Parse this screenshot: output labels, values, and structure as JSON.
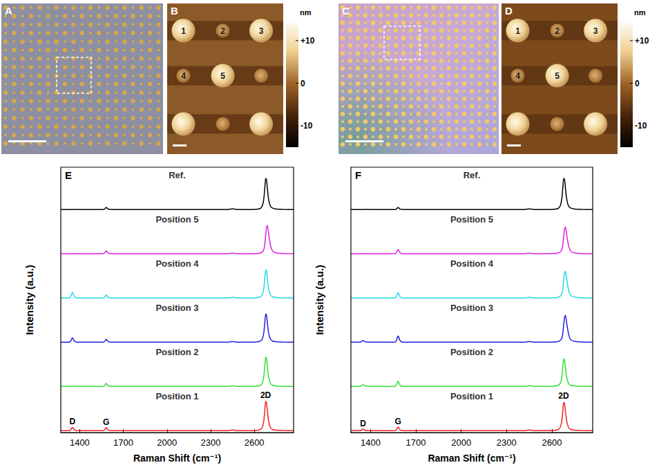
{
  "images": [
    {
      "letter": "A",
      "kind": "optical"
    },
    {
      "letter": "B",
      "kind": "afm",
      "dot_labels": [
        "1",
        "2",
        "3",
        "4",
        "5"
      ],
      "colorbar": {
        "unit": "nm",
        "range": [
          -15,
          15
        ],
        "ticks": [
          {
            "value": 10,
            "label": "+10"
          },
          0,
          -10
        ]
      }
    },
    {
      "letter": "C",
      "kind": "optical"
    },
    {
      "letter": "D",
      "kind": "afm",
      "dot_labels": [
        "1",
        "2",
        "3",
        "4",
        "5"
      ],
      "colorbar": {
        "unit": "nm",
        "range": [
          -15,
          15
        ],
        "ticks": [
          {
            "value": 10,
            "label": "+10"
          },
          0,
          -10
        ]
      }
    }
  ],
  "chart_data": [
    {
      "type": "line",
      "letter": "E",
      "xlabel": "Raman Shift (cm⁻¹)",
      "ylabel": "Intensity (a.u.)",
      "tick_labels": "x",
      "grid": false,
      "xlim": [
        1270,
        2870
      ],
      "xticks": [
        1400,
        1700,
        2000,
        2300,
        2600
      ],
      "ylim": [
        0,
        1.2
      ],
      "x": [
        1270,
        1300,
        1330,
        1340,
        1346,
        1350,
        1354,
        1360,
        1375,
        1420,
        1500,
        1560,
        1572,
        1578,
        1582,
        1586,
        1592,
        1605,
        1650,
        1800,
        2000,
        2200,
        2350,
        2420,
        2440,
        2450,
        2460,
        2480,
        2550,
        2610,
        2640,
        2655,
        2665,
        2672,
        2678,
        2684,
        2690,
        2698,
        2710,
        2725,
        2750,
        2800,
        2870
      ],
      "series": [
        {
          "name": "Ref.",
          "color": "#000000",
          "values": [
            0.05,
            0.05,
            0.052,
            0.05,
            0.05,
            0.05,
            0.05,
            0.05,
            0.055,
            0.05,
            0.05,
            0.052,
            0.068,
            0.098,
            0.11,
            0.101,
            0.074,
            0.055,
            0.05,
            0.05,
            0.05,
            0.05,
            0.05,
            0.053,
            0.065,
            0.07,
            0.065,
            0.053,
            0.05,
            0.055,
            0.08,
            0.15,
            0.33,
            0.62,
            0.9,
            0.86,
            0.62,
            0.34,
            0.15,
            0.09,
            0.065,
            0.055,
            0.05
          ]
        },
        {
          "name": "Position 5",
          "color": "#e020e0",
          "values": [
            0.05,
            0.05,
            0.052,
            0.05,
            0.05,
            0.05,
            0.05,
            0.05,
            0.055,
            0.05,
            0.05,
            0.052,
            0.074,
            0.114,
            0.13,
            0.118,
            0.082,
            0.055,
            0.05,
            0.05,
            0.05,
            0.05,
            0.05,
            0.053,
            0.065,
            0.07,
            0.065,
            0.053,
            0.05,
            0.055,
            0.07,
            0.1,
            0.16,
            0.3,
            0.55,
            0.78,
            0.82,
            0.6,
            0.3,
            0.13,
            0.075,
            0.055,
            0.05
          ]
        },
        {
          "name": "Position 4",
          "color": "#20d8e8",
          "values": [
            0.05,
            0.05,
            0.052,
            0.11,
            0.178,
            0.2,
            0.178,
            0.11,
            0.055,
            0.05,
            0.05,
            0.052,
            0.074,
            0.114,
            0.13,
            0.118,
            0.082,
            0.055,
            0.05,
            0.05,
            0.05,
            0.05,
            0.05,
            0.053,
            0.065,
            0.07,
            0.065,
            0.053,
            0.05,
            0.055,
            0.08,
            0.14,
            0.3,
            0.57,
            0.82,
            0.78,
            0.57,
            0.31,
            0.14,
            0.085,
            0.065,
            0.055,
            0.05
          ]
        },
        {
          "name": "Position 3",
          "color": "#2020e0",
          "values": [
            0.05,
            0.05,
            0.052,
            0.098,
            0.152,
            0.17,
            0.152,
            0.098,
            0.055,
            0.05,
            0.05,
            0.052,
            0.074,
            0.114,
            0.13,
            0.118,
            0.082,
            0.055,
            0.05,
            0.05,
            0.05,
            0.05,
            0.05,
            0.053,
            0.065,
            0.07,
            0.065,
            0.053,
            0.05,
            0.055,
            0.08,
            0.14,
            0.3,
            0.57,
            0.82,
            0.78,
            0.57,
            0.31,
            0.14,
            0.085,
            0.065,
            0.055,
            0.05
          ]
        },
        {
          "name": "Position 2",
          "color": "#30e030",
          "values": [
            0.05,
            0.05,
            0.052,
            0.054,
            0.059,
            0.06,
            0.059,
            0.054,
            0.055,
            0.05,
            0.05,
            0.052,
            0.074,
            0.114,
            0.13,
            0.118,
            0.082,
            0.055,
            0.05,
            0.05,
            0.05,
            0.05,
            0.05,
            0.053,
            0.065,
            0.07,
            0.065,
            0.053,
            0.05,
            0.055,
            0.08,
            0.14,
            0.31,
            0.59,
            0.85,
            0.81,
            0.59,
            0.32,
            0.14,
            0.085,
            0.065,
            0.055,
            0.05
          ]
        },
        {
          "name": "Position 1",
          "color": "#f02020",
          "values": [
            0.05,
            0.05,
            0.052,
            0.086,
            0.127,
            0.14,
            0.127,
            0.086,
            0.055,
            0.05,
            0.05,
            0.052,
            0.074,
            0.114,
            0.13,
            0.118,
            0.082,
            0.055,
            0.05,
            0.05,
            0.05,
            0.05,
            0.05,
            0.053,
            0.065,
            0.07,
            0.065,
            0.053,
            0.05,
            0.055,
            0.08,
            0.14,
            0.31,
            0.59,
            0.85,
            0.81,
            0.59,
            0.32,
            0.14,
            0.085,
            0.065,
            0.055,
            0.05
          ],
          "annotations": [
            {
              "text": "D",
              "x": 1350,
              "y": 0.14
            },
            {
              "text": "G",
              "x": 1582,
              "y": 0.13
            },
            {
              "text": "2D",
              "x": 2678,
              "y": 0.86
            }
          ]
        }
      ]
    },
    {
      "type": "line",
      "letter": "F",
      "xlabel": "Raman Shift (cm⁻¹)",
      "ylabel": "Intensity (a.u.)",
      "tick_labels": "x",
      "grid": false,
      "xlim": [
        1270,
        2870
      ],
      "xticks": [
        1400,
        1700,
        2000,
        2300,
        2600
      ],
      "ylim": [
        0,
        1.2
      ],
      "x": [
        1270,
        1300,
        1330,
        1340,
        1346,
        1350,
        1354,
        1360,
        1375,
        1420,
        1500,
        1560,
        1572,
        1578,
        1582,
        1586,
        1592,
        1605,
        1650,
        1800,
        2000,
        2200,
        2350,
        2420,
        2440,
        2450,
        2460,
        2480,
        2550,
        2610,
        2640,
        2655,
        2665,
        2672,
        2678,
        2684,
        2690,
        2698,
        2710,
        2725,
        2750,
        2800,
        2870
      ],
      "series": [
        {
          "name": "Ref.",
          "color": "#000000",
          "values": [
            0.05,
            0.05,
            0.052,
            0.05,
            0.05,
            0.05,
            0.05,
            0.05,
            0.055,
            0.05,
            0.05,
            0.052,
            0.068,
            0.098,
            0.11,
            0.101,
            0.074,
            0.055,
            0.05,
            0.05,
            0.05,
            0.05,
            0.05,
            0.053,
            0.065,
            0.07,
            0.065,
            0.053,
            0.05,
            0.055,
            0.08,
            0.15,
            0.33,
            0.62,
            0.9,
            0.86,
            0.62,
            0.34,
            0.15,
            0.09,
            0.065,
            0.055,
            0.05
          ]
        },
        {
          "name": "Position 5",
          "color": "#e020e0",
          "values": [
            0.05,
            0.05,
            0.052,
            0.05,
            0.05,
            0.05,
            0.05,
            0.05,
            0.055,
            0.05,
            0.05,
            0.052,
            0.086,
            0.146,
            0.17,
            0.152,
            0.098,
            0.055,
            0.05,
            0.05,
            0.05,
            0.05,
            0.05,
            0.053,
            0.065,
            0.07,
            0.065,
            0.053,
            0.05,
            0.055,
            0.07,
            0.1,
            0.15,
            0.28,
            0.52,
            0.74,
            0.78,
            0.57,
            0.28,
            0.12,
            0.075,
            0.055,
            0.05
          ]
        },
        {
          "name": "Position 4",
          "color": "#20d8e8",
          "values": [
            0.05,
            0.05,
            0.052,
            0.05,
            0.05,
            0.05,
            0.05,
            0.05,
            0.055,
            0.05,
            0.05,
            0.052,
            0.092,
            0.162,
            0.19,
            0.169,
            0.106,
            0.055,
            0.05,
            0.05,
            0.05,
            0.05,
            0.05,
            0.053,
            0.065,
            0.07,
            0.065,
            0.053,
            0.05,
            0.055,
            0.07,
            0.1,
            0.15,
            0.28,
            0.52,
            0.74,
            0.78,
            0.57,
            0.28,
            0.12,
            0.075,
            0.055,
            0.05
          ]
        },
        {
          "name": "Position 3",
          "color": "#2020e0",
          "values": [
            0.05,
            0.05,
            0.052,
            0.07,
            0.093,
            0.1,
            0.093,
            0.07,
            0.055,
            0.05,
            0.05,
            0.052,
            0.101,
            0.186,
            0.22,
            0.195,
            0.118,
            0.055,
            0.05,
            0.05,
            0.05,
            0.05,
            0.05,
            0.053,
            0.065,
            0.07,
            0.065,
            0.053,
            0.05,
            0.055,
            0.07,
            0.1,
            0.15,
            0.28,
            0.52,
            0.74,
            0.78,
            0.57,
            0.28,
            0.12,
            0.075,
            0.055,
            0.05
          ]
        },
        {
          "name": "Position 2",
          "color": "#30e030",
          "values": [
            0.05,
            0.05,
            0.052,
            0.07,
            0.093,
            0.1,
            0.093,
            0.07,
            0.055,
            0.05,
            0.05,
            0.052,
            0.092,
            0.162,
            0.19,
            0.169,
            0.106,
            0.055,
            0.05,
            0.05,
            0.05,
            0.05,
            0.05,
            0.053,
            0.065,
            0.07,
            0.065,
            0.053,
            0.05,
            0.055,
            0.08,
            0.13,
            0.29,
            0.56,
            0.8,
            0.76,
            0.56,
            0.3,
            0.13,
            0.085,
            0.065,
            0.055,
            0.05
          ]
        },
        {
          "name": "Position 1",
          "color": "#f02020",
          "values": [
            0.05,
            0.05,
            0.052,
            0.066,
            0.084,
            0.09,
            0.084,
            0.066,
            0.055,
            0.05,
            0.05,
            0.052,
            0.08,
            0.13,
            0.15,
            0.135,
            0.09,
            0.055,
            0.05,
            0.05,
            0.05,
            0.05,
            0.05,
            0.053,
            0.065,
            0.07,
            0.065,
            0.053,
            0.05,
            0.055,
            0.08,
            0.14,
            0.3,
            0.57,
            0.82,
            0.78,
            0.57,
            0.31,
            0.14,
            0.085,
            0.065,
            0.055,
            0.05
          ],
          "annotations": [
            {
              "text": "D",
              "x": 1350,
              "y": 0.09
            },
            {
              "text": "G",
              "x": 1582,
              "y": 0.15
            },
            {
              "text": "2D",
              "x": 2678,
              "y": 0.83
            }
          ]
        }
      ]
    }
  ]
}
